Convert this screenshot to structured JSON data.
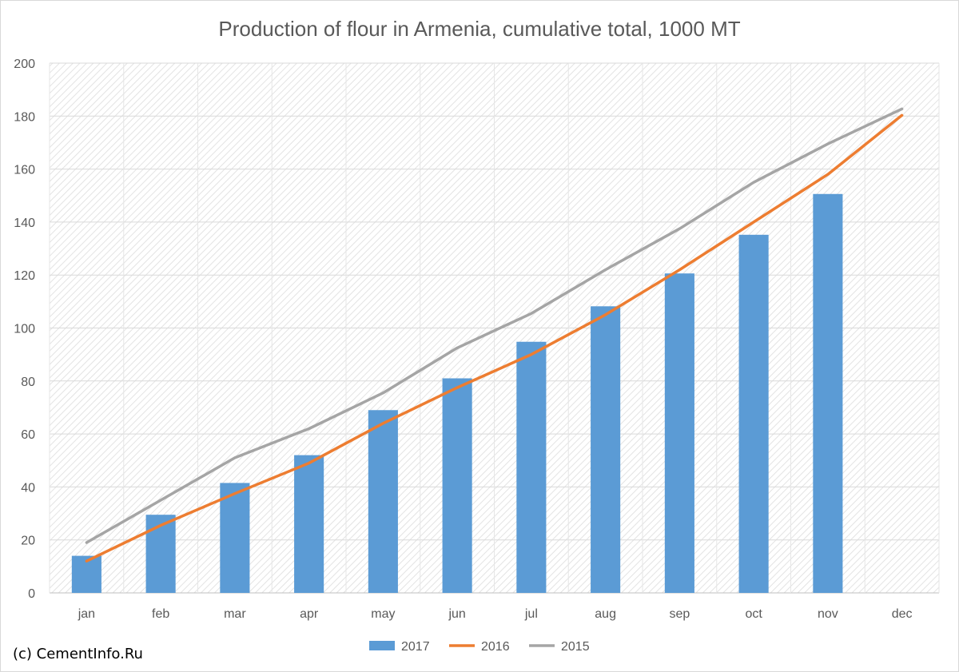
{
  "chart_data": {
    "type": "bar",
    "title": "Production of flour in Armenia, cumulative total, 1000 MT",
    "xlabel": "",
    "ylabel": "",
    "categories": [
      "jan",
      "feb",
      "mar",
      "apr",
      "may",
      "jun",
      "jul",
      "aug",
      "sep",
      "oct",
      "nov",
      "dec"
    ],
    "ylim": [
      0,
      200
    ],
    "yticks": [
      0,
      20,
      40,
      60,
      80,
      100,
      120,
      140,
      160,
      180,
      200
    ],
    "grid": true,
    "legend_position": "bottom",
    "series": [
      {
        "name": "2017",
        "kind": "bar",
        "color": "#5b9bd5",
        "values": [
          14,
          29.5,
          41.5,
          52,
          69,
          81,
          94.8,
          108.2,
          120.6,
          135.2,
          150.6,
          null
        ]
      },
      {
        "name": "2016",
        "kind": "line",
        "color": "#ed7d31",
        "values": [
          12,
          25.5,
          37.5,
          49,
          64,
          77.5,
          90,
          105,
          122,
          140,
          158,
          180.3
        ]
      },
      {
        "name": "2015",
        "kind": "line",
        "color": "#a5a5a5",
        "values": [
          19,
          35,
          51,
          62,
          75.5,
          92.5,
          105.5,
          122,
          137.5,
          155,
          169.5,
          182.7
        ]
      }
    ]
  },
  "credit": "(c) CementInfo.Ru"
}
